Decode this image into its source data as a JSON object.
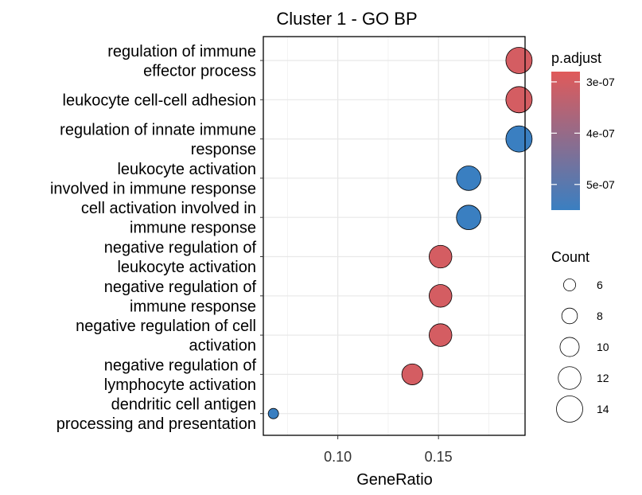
{
  "chart_data": {
    "type": "scatter",
    "title": "Cluster 1 - GO BP",
    "xlabel": "GeneRatio",
    "ylabel": "",
    "xlim": [
      0.063,
      0.193
    ],
    "x_ticks": [
      "0.10",
      "0.15"
    ],
    "x_tick_values": [
      0.1,
      0.15
    ],
    "grid": true,
    "points": [
      {
        "term": [
          "regulation of immune",
          "effector process"
        ],
        "gene_ratio": 0.19,
        "count": 14,
        "p_adjust": 3e-07
      },
      {
        "term": [
          "leukocyte cell-cell adhesion"
        ],
        "gene_ratio": 0.19,
        "count": 14,
        "p_adjust": 3e-07
      },
      {
        "term": [
          "regulation of innate immune",
          "response"
        ],
        "gene_ratio": 0.19,
        "count": 14,
        "p_adjust": 5.5e-07
      },
      {
        "term": [
          "leukocyte activation",
          "involved in immune response"
        ],
        "gene_ratio": 0.165,
        "count": 13,
        "p_adjust": 5.5e-07
      },
      {
        "term": [
          "cell activation involved in",
          "immune response"
        ],
        "gene_ratio": 0.165,
        "count": 13,
        "p_adjust": 5.5e-07
      },
      {
        "term": [
          "negative regulation of",
          "leukocyte activation"
        ],
        "gene_ratio": 0.151,
        "count": 12,
        "p_adjust": 3e-07
      },
      {
        "term": [
          "negative regulation of",
          "immune response"
        ],
        "gene_ratio": 0.151,
        "count": 12,
        "p_adjust": 3e-07
      },
      {
        "term": [
          "negative regulation of cell",
          "activation"
        ],
        "gene_ratio": 0.151,
        "count": 12,
        "p_adjust": 3e-07
      },
      {
        "term": [
          "negative regulation of",
          "lymphocyte activation"
        ],
        "gene_ratio": 0.137,
        "count": 11,
        "p_adjust": 3e-07
      },
      {
        "term": [
          "dendritic cell antigen",
          "processing and presentation"
        ],
        "gene_ratio": 0.068,
        "count": 5,
        "p_adjust": 5.5e-07
      }
    ],
    "color_legend": {
      "title": "p.adjust",
      "ticks": [
        "3e-07",
        "4e-07",
        "5e-07"
      ],
      "tick_values": [
        3e-07,
        4e-07,
        5e-07
      ],
      "range": [
        2.8e-07,
        5.5e-07
      ],
      "low_color": "#E05A5A",
      "high_color": "#3A7FC1",
      "placement": "right"
    },
    "size_legend": {
      "title": "Count",
      "values": [
        6,
        8,
        10,
        12,
        14
      ],
      "labels": [
        "6",
        "8",
        "10",
        "12",
        "14"
      ],
      "placement": "right"
    }
  }
}
